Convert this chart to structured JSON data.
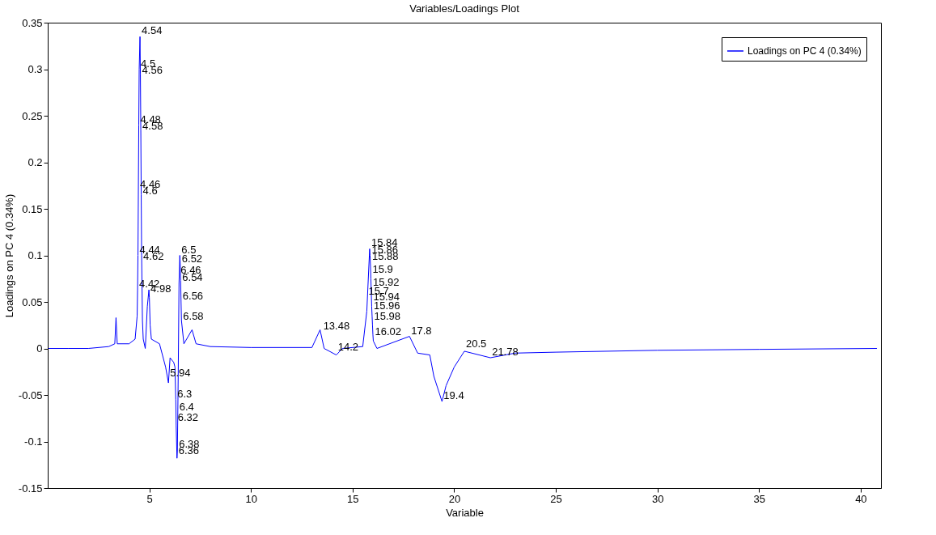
{
  "chart_data": {
    "type": "line",
    "title": "Variables/Loadings Plot",
    "xlabel": "Variable",
    "ylabel": "Loadings on PC 4 (0.34%)",
    "x": [
      0.04,
      1,
      2,
      3,
      3.3,
      3.36,
      3.42,
      4.0,
      4.3,
      4.4,
      4.42,
      4.44,
      4.46,
      4.48,
      4.5,
      4.54,
      4.56,
      4.58,
      4.6,
      4.62,
      4.66,
      4.7,
      4.8,
      4.9,
      4.98,
      5.0,
      5.04,
      5.1,
      5.5,
      5.8,
      5.94,
      6.02,
      6.2,
      6.26,
      6.3,
      6.32,
      6.36,
      6.38,
      6.4,
      6.42,
      6.46,
      6.5,
      6.52,
      6.54,
      6.56,
      6.58,
      6.7,
      7.1,
      7.3,
      8,
      10,
      13,
      13.4,
      13.6,
      14.2,
      14.5,
      15.5,
      15.7,
      15.84,
      15.86,
      15.88,
      15.9,
      15.92,
      15.94,
      15.96,
      15.98,
      16,
      16.02,
      16.2,
      17.8,
      18.2,
      18.8,
      19.0,
      19.4,
      19.6,
      20,
      20.5,
      21.78,
      23,
      25,
      30,
      35,
      40.8
    ],
    "series": [
      {
        "name": "Loadings on PC 4 (0.34%)",
        "color": "#0000ff",
        "values": [
          0,
          0,
          0,
          0.002,
          0.005,
          0.033,
          0.005,
          0.005,
          0.01,
          0.035,
          0.063,
          0.1,
          0.17,
          0.24,
          0.3,
          0.335,
          0.295,
          0.235,
          0.165,
          0.1,
          0.03,
          0.01,
          0,
          0.045,
          0.063,
          0.055,
          0.025,
          0.01,
          0.005,
          -0.02,
          -0.037,
          -0.01,
          -0.015,
          -0.02,
          -0.055,
          -0.083,
          -0.118,
          -0.11,
          -0.07,
          -0.03,
          0.07,
          0.1,
          0.09,
          0.073,
          0.05,
          0.03,
          0.005,
          0.02,
          0.005,
          0.002,
          0.001,
          0.001,
          0.02,
          0,
          -0.007,
          0,
          0.002,
          0.04,
          0.107,
          0.1,
          0.09,
          0.075,
          0.06,
          0.045,
          0.035,
          0.025,
          0.015,
          0.008,
          0,
          0.013,
          -0.005,
          -0.007,
          -0.03,
          -0.057,
          -0.04,
          -0.02,
          -0.003,
          -0.01,
          -0.005,
          -0.004,
          -0.002,
          -0.001,
          0
        ]
      }
    ],
    "annotations": [
      {
        "text": "4.54",
        "x": 4.54,
        "y": 0.335
      },
      {
        "text": "4.5",
        "x": 4.5,
        "y": 0.3
      },
      {
        "text": "4.56",
        "x": 4.56,
        "y": 0.293
      },
      {
        "text": "4.48",
        "x": 4.48,
        "y": 0.24
      },
      {
        "text": "4.58",
        "x": 4.58,
        "y": 0.233
      },
      {
        "text": "4.46",
        "x": 4.46,
        "y": 0.17
      },
      {
        "text": "4.6",
        "x": 4.6,
        "y": 0.163
      },
      {
        "text": "4.44",
        "x": 4.44,
        "y": 0.1
      },
      {
        "text": "4.62",
        "x": 4.62,
        "y": 0.093
      },
      {
        "text": "4.42",
        "x": 4.42,
        "y": 0.063
      },
      {
        "text": "4.98",
        "x": 4.98,
        "y": 0.058
      },
      {
        "text": "6.5",
        "x": 6.5,
        "y": 0.1
      },
      {
        "text": "6.52",
        "x": 6.52,
        "y": 0.09
      },
      {
        "text": "6.46",
        "x": 6.46,
        "y": 0.078
      },
      {
        "text": "6.54",
        "x": 6.54,
        "y": 0.07
      },
      {
        "text": "6.56",
        "x": 6.56,
        "y": 0.05
      },
      {
        "text": "6.58",
        "x": 6.58,
        "y": 0.028
      },
      {
        "text": "5.94",
        "x": 5.94,
        "y": -0.033
      },
      {
        "text": "6.3",
        "x": 6.3,
        "y": -0.055
      },
      {
        "text": "6.4",
        "x": 6.4,
        "y": -0.069
      },
      {
        "text": "6.32",
        "x": 6.32,
        "y": -0.08
      },
      {
        "text": "6.38",
        "x": 6.38,
        "y": -0.109
      },
      {
        "text": "6.36",
        "x": 6.36,
        "y": -0.116
      },
      {
        "text": "13.48",
        "x": 13.48,
        "y": 0.018
      },
      {
        "text": "14.2",
        "x": 14.2,
        "y": -0.005
      },
      {
        "text": "15.84",
        "x": 15.84,
        "y": 0.107
      },
      {
        "text": "15.86",
        "x": 15.86,
        "y": 0.1
      },
      {
        "text": "15.88",
        "x": 15.88,
        "y": 0.093
      },
      {
        "text": "15.9",
        "x": 15.9,
        "y": 0.079
      },
      {
        "text": "15.92",
        "x": 15.92,
        "y": 0.065
      },
      {
        "text": "15.7",
        "x": 15.7,
        "y": 0.055
      },
      {
        "text": "15.94",
        "x": 15.94,
        "y": 0.049
      },
      {
        "text": "15.96",
        "x": 15.96,
        "y": 0.04
      },
      {
        "text": "15.98",
        "x": 15.98,
        "y": 0.028
      },
      {
        "text": "16.02",
        "x": 16.02,
        "y": 0.012
      },
      {
        "text": "17.8",
        "x": 17.8,
        "y": 0.013
      },
      {
        "text": "20.5",
        "x": 20.5,
        "y": -0.001
      },
      {
        "text": "21.78",
        "x": 21.78,
        "y": -0.01
      },
      {
        "text": "19.4",
        "x": 19.4,
        "y": -0.057
      }
    ],
    "xlim": [
      0,
      41
    ],
    "xticks": [
      5,
      10,
      15,
      20,
      25,
      30,
      35,
      40
    ],
    "ylim": [
      -0.15,
      0.35
    ],
    "yticks": [
      -0.15,
      -0.1,
      -0.05,
      0,
      0.05,
      0.1,
      0.15,
      0.2,
      0.25,
      0.3,
      0.35
    ],
    "grid": false,
    "legend": "top right"
  }
}
